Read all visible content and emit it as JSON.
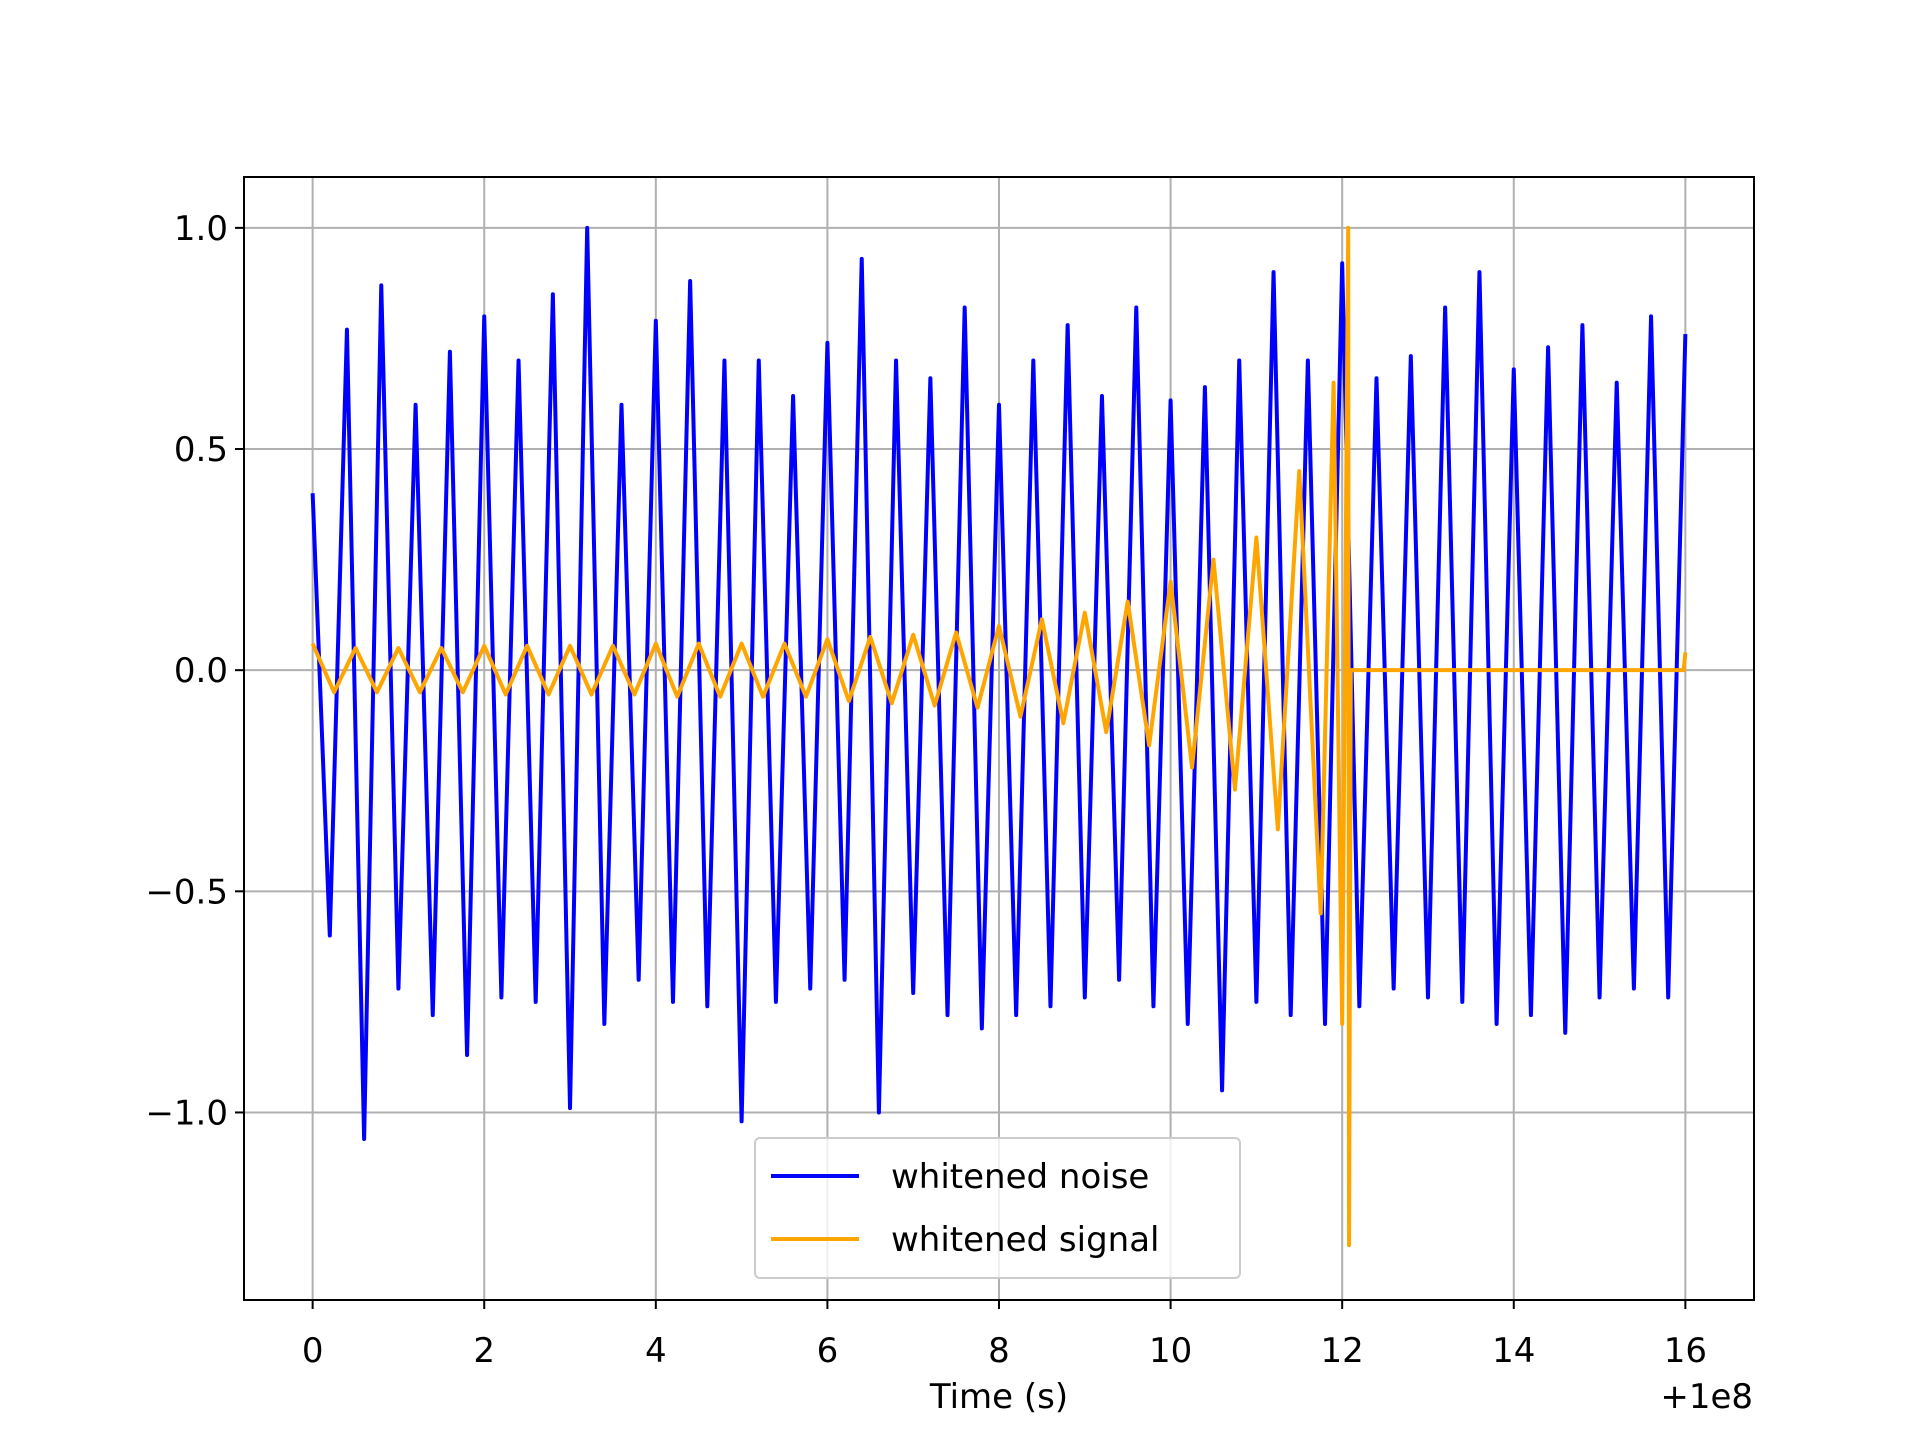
{
  "chart_data": {
    "type": "line",
    "xlabel": "Time (s)",
    "x_offset_label": "+1e8",
    "xlim": [
      -0.8,
      16.8
    ],
    "ylim": [
      -1.424,
      1.115
    ],
    "xticks": [
      0,
      2,
      4,
      6,
      8,
      10,
      12,
      14,
      16
    ],
    "yticks": [
      {
        "value": -1.0,
        "label": "−1.0"
      },
      {
        "value": -0.5,
        "label": "−0.5"
      },
      {
        "value": 0.0,
        "label": "0.0"
      },
      {
        "value": 0.5,
        "label": "0.5"
      },
      {
        "value": 1.0,
        "label": "1.0"
      }
    ],
    "grid": true,
    "legend": "lower center",
    "series": [
      {
        "name": "whitened noise",
        "color": "#0000ff",
        "x": [
          0,
          0.2,
          0.4,
          0.6,
          0.8,
          1,
          1.2,
          1.4,
          1.6,
          1.8,
          2,
          2.2,
          2.4,
          2.6,
          2.8,
          3,
          3.2,
          3.4,
          3.6,
          3.8,
          4,
          4.2,
          4.4,
          4.6,
          4.8,
          5,
          5.2,
          5.4,
          5.6,
          5.8,
          6,
          6.2,
          6.4,
          6.6,
          6.8,
          7,
          7.2,
          7.4,
          7.6,
          7.8,
          8,
          8.2,
          8.4,
          8.6,
          8.8,
          9,
          9.2,
          9.4,
          9.6,
          9.8,
          10,
          10.2,
          10.4,
          10.6,
          10.8,
          11,
          11.2,
          11.4,
          11.6,
          11.8,
          12,
          12.2,
          12.4,
          12.6,
          12.8,
          13,
          13.2,
          13.4,
          13.6,
          13.8,
          14,
          14.2,
          14.4,
          14.6,
          14.8,
          15,
          15.2,
          15.4,
          15.6,
          15.8,
          16
        ],
        "values": [
          0.4,
          -0.6,
          0.77,
          -1.06,
          0.87,
          -0.72,
          0.6,
          -0.78,
          0.72,
          -0.87,
          0.8,
          -0.74,
          0.7,
          -0.75,
          0.85,
          -0.99,
          1.0,
          -0.8,
          0.6,
          -0.7,
          0.79,
          -0.75,
          0.88,
          -0.76,
          0.7,
          -1.02,
          0.7,
          -0.75,
          0.62,
          -0.72,
          0.74,
          -0.7,
          0.93,
          -1.0,
          0.7,
          -0.73,
          0.66,
          -0.78,
          0.82,
          -0.81,
          0.6,
          -0.78,
          0.7,
          -0.76,
          0.78,
          -0.74,
          0.62,
          -0.7,
          0.82,
          -0.76,
          0.61,
          -0.8,
          0.64,
          -0.95,
          0.7,
          -0.75,
          0.9,
          -0.78,
          0.7,
          -0.8,
          0.92,
          -0.76,
          0.66,
          -0.72,
          0.71,
          -0.74,
          0.82,
          -0.75,
          0.9,
          -0.8,
          0.68,
          -0.78,
          0.73,
          -0.82,
          0.78,
          -0.74,
          0.65,
          -0.72,
          0.8,
          -0.74,
          0.76
        ]
      },
      {
        "name": "whitened signal",
        "color": "#ffa500",
        "x": [
          0,
          0.25,
          0.5,
          0.75,
          1,
          1.25,
          1.5,
          1.75,
          2,
          2.25,
          2.5,
          2.75,
          3,
          3.25,
          3.5,
          3.75,
          4,
          4.25,
          4.5,
          4.75,
          5,
          5.25,
          5.5,
          5.75,
          6,
          6.25,
          6.5,
          6.75,
          7,
          7.25,
          7.5,
          7.75,
          8,
          8.25,
          8.5,
          8.75,
          9,
          9.25,
          9.5,
          9.75,
          10,
          10.25,
          10.5,
          10.75,
          11,
          11.25,
          11.5,
          11.75,
          11.9,
          12,
          12.07,
          12.08,
          12.1,
          15.98,
          16
        ],
        "values": [
          0.06,
          -0.05,
          0.05,
          -0.05,
          0.05,
          -0.05,
          0.05,
          -0.05,
          0.055,
          -0.055,
          0.055,
          -0.055,
          0.055,
          -0.055,
          0.055,
          -0.055,
          0.06,
          -0.06,
          0.06,
          -0.06,
          0.06,
          -0.06,
          0.06,
          -0.06,
          0.07,
          -0.07,
          0.075,
          -0.075,
          0.08,
          -0.08,
          0.085,
          -0.085,
          0.1,
          -0.105,
          0.115,
          -0.12,
          0.13,
          -0.14,
          0.155,
          -0.17,
          0.2,
          -0.22,
          0.25,
          -0.27,
          0.3,
          -0.36,
          0.45,
          -0.55,
          0.65,
          -0.8,
          1.0,
          -1.3,
          0,
          0,
          0.04
        ]
      }
    ]
  }
}
